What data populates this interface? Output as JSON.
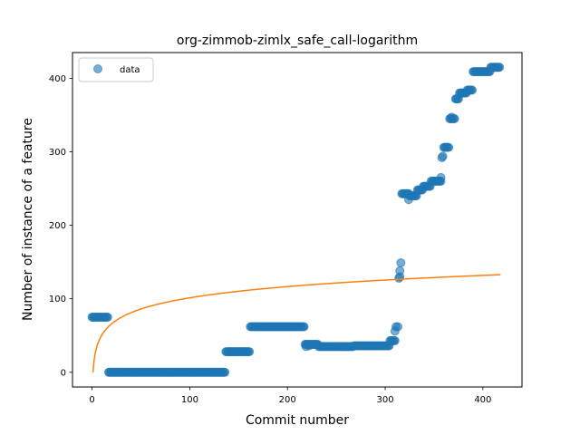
{
  "chart_data": {
    "type": "scatter",
    "title": "org-zimmob-zimlx_safe_call-logarithm",
    "xlabel": "Commit number",
    "ylabel": "Number of instance of a feature",
    "xlim": [
      -20,
      440
    ],
    "ylim": [
      -20,
      435
    ],
    "xticks": [
      0,
      100,
      200,
      300,
      400
    ],
    "yticks": [
      0,
      100,
      200,
      300,
      400
    ],
    "grid": false,
    "legend": {
      "placement": "top-left",
      "entries": [
        "data"
      ]
    },
    "colors": {
      "data": "#1f77b4",
      "fit": "#ff7f0e"
    },
    "series": [
      {
        "name": "data",
        "kind": "scatter",
        "segments": [
          {
            "x_start": 0,
            "x_end": 17,
            "y": 75
          },
          {
            "x_start": 17,
            "x_end": 137,
            "y": 0
          },
          {
            "x_start": 137,
            "x_end": 162,
            "y": 28
          },
          {
            "x_start": 162,
            "x_end": 218,
            "y": 62
          },
          {
            "x_start": 218,
            "x_end": 232,
            "y": 38
          },
          {
            "x_start": 232,
            "x_end": 268,
            "y": 35
          },
          {
            "x_start": 268,
            "x_end": 305,
            "y": 36
          },
          {
            "x_start": 305,
            "x_end": 311,
            "y": 43
          },
          {
            "x_start": 317,
            "x_end": 325,
            "y": 243
          },
          {
            "x_start": 325,
            "x_end": 333,
            "y": 240
          },
          {
            "x_start": 333,
            "x_end": 339,
            "y": 248
          },
          {
            "x_start": 339,
            "x_end": 347,
            "y": 253
          },
          {
            "x_start": 347,
            "x_end": 358,
            "y": 260
          },
          {
            "x_start": 360,
            "x_end": 366,
            "y": 306
          },
          {
            "x_start": 366,
            "x_end": 372,
            "y": 345
          },
          {
            "x_start": 372,
            "x_end": 376,
            "y": 372
          },
          {
            "x_start": 376,
            "x_end": 384,
            "y": 380
          },
          {
            "x_start": 384,
            "x_end": 390,
            "y": 384
          },
          {
            "x_start": 390,
            "x_end": 408,
            "y": 409
          },
          {
            "x_start": 408,
            "x_end": 418,
            "y": 415
          }
        ],
        "points": [
          {
            "x": 219,
            "y": 35
          },
          {
            "x": 222,
            "y": 36
          },
          {
            "x": 310,
            "y": 56
          },
          {
            "x": 311,
            "y": 62
          },
          {
            "x": 313,
            "y": 62
          },
          {
            "x": 314,
            "y": 128
          },
          {
            "x": 315,
            "y": 130
          },
          {
            "x": 315,
            "y": 138
          },
          {
            "x": 316,
            "y": 149
          },
          {
            "x": 324,
            "y": 235
          },
          {
            "x": 357,
            "y": 265
          },
          {
            "x": 358,
            "y": 292
          },
          {
            "x": 359,
            "y": 294
          },
          {
            "x": 368,
            "y": 347
          }
        ]
      },
      {
        "name": "",
        "kind": "line",
        "function": "log",
        "a": 0,
        "b": 22,
        "x_start": 1,
        "x_end": 418
      }
    ]
  }
}
